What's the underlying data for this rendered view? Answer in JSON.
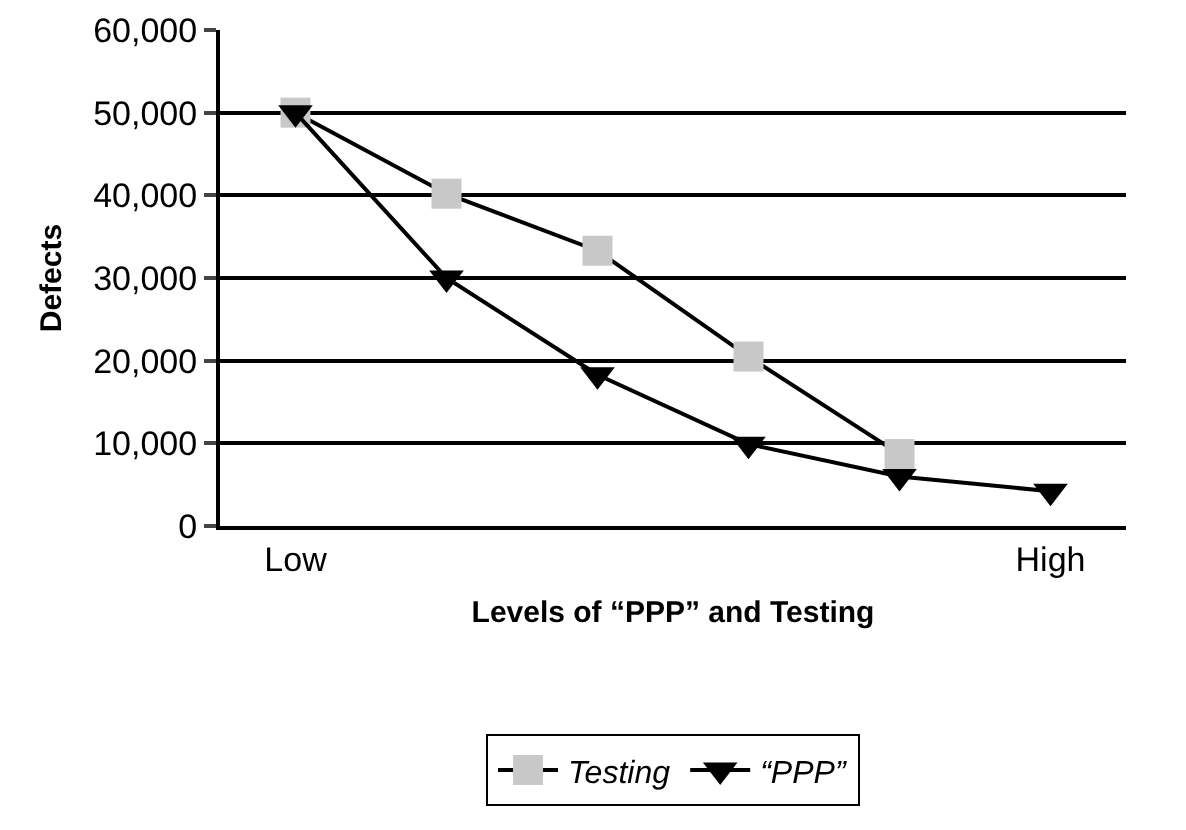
{
  "chart_data": {
    "type": "line",
    "xlabel": "Levels of “PPP” and Testing",
    "ylabel": "Defects",
    "categories": [
      "Low",
      null,
      null,
      null,
      null,
      "High"
    ],
    "series": [
      {
        "name": "Testing",
        "color": "#c8c8c8",
        "marker": "square",
        "values": [
          50000,
          40200,
          33300,
          20500,
          8700,
          null
        ]
      },
      {
        "name": "“PPP”",
        "color": "#000000",
        "marker": "triangle-down",
        "values": [
          50000,
          30000,
          18300,
          9900,
          6000,
          4200
        ]
      }
    ],
    "ylim": [
      0,
      60000
    ],
    "yticks": [
      {
        "value": 0,
        "label": "0"
      },
      {
        "value": 10000,
        "label": "10,000"
      },
      {
        "value": 20000,
        "label": "20,000"
      },
      {
        "value": 30000,
        "label": "30,000"
      },
      {
        "value": 40000,
        "label": "40,000"
      },
      {
        "value": 50000,
        "label": "50,000"
      },
      {
        "value": 60000,
        "label": "60,000"
      }
    ],
    "grid": "y",
    "legend": "bottom",
    "line_style": "solid"
  }
}
